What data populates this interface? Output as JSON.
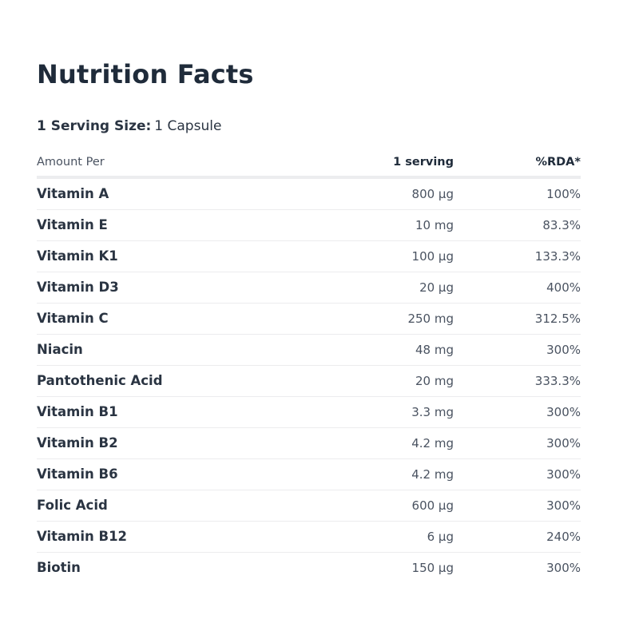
{
  "title": "Nutrition Facts",
  "serving": {
    "label": "1 Serving Size:",
    "value": "1 Capsule"
  },
  "table": {
    "headers": {
      "amount_per": "Amount Per",
      "serving": "1 serving",
      "rda": "%RDA*"
    },
    "rows": [
      {
        "name": "Vitamin A",
        "amount": "800 µg",
        "rda": "100%"
      },
      {
        "name": "Vitamin E",
        "amount": "10 mg",
        "rda": "83.3%"
      },
      {
        "name": "Vitamin K1",
        "amount": "100 µg",
        "rda": "133.3%"
      },
      {
        "name": "Vitamin D3",
        "amount": "20 µg",
        "rda": "400%"
      },
      {
        "name": "Vitamin C",
        "amount": "250 mg",
        "rda": "312.5%"
      },
      {
        "name": "Niacin",
        "amount": "48 mg",
        "rda": "300%"
      },
      {
        "name": "Pantothenic Acid",
        "amount": "20 mg",
        "rda": "333.3%"
      },
      {
        "name": "Vitamin B1",
        "amount": "3.3 mg",
        "rda": "300%"
      },
      {
        "name": "Vitamin B2",
        "amount": "4.2 mg",
        "rda": "300%"
      },
      {
        "name": "Vitamin B6",
        "amount": "4.2 mg",
        "rda": "300%"
      },
      {
        "name": "Folic Acid",
        "amount": "600 µg",
        "rda": "300%"
      },
      {
        "name": "Vitamin B12",
        "amount": "6 µg",
        "rda": "240%"
      },
      {
        "name": "Biotin",
        "amount": "150 µg",
        "rda": "300%"
      }
    ]
  }
}
